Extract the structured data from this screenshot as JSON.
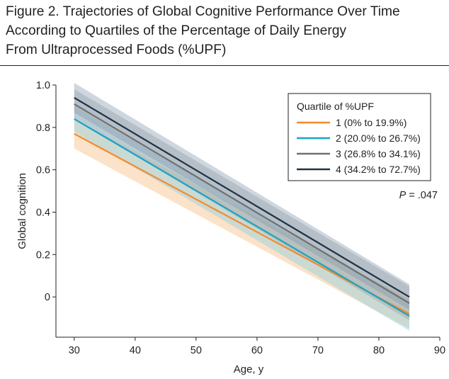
{
  "figure": {
    "title_lines": [
      "Figure 2. Trajectories of Global Cognitive Performance Over Time",
      "According to Quartiles of the Percentage of Daily Energy",
      "From Ultraprocessed Foods (%UPF)"
    ]
  },
  "chart_data": {
    "type": "line",
    "title": "Figure 2. Trajectories of Global Cognitive Performance Over Time According to Quartiles of the Percentage of Daily Energy From Ultraprocessed Foods (%UPF)",
    "xlabel": "Age, y",
    "ylabel": "Global cognition",
    "xlim": [
      27,
      90
    ],
    "ylim": [
      -0.19,
      1.0
    ],
    "xticks": [
      30,
      40,
      50,
      60,
      70,
      80,
      90
    ],
    "yticks": [
      0,
      0.2,
      0.4,
      0.6,
      0.8,
      1.0
    ],
    "ytick_labels": [
      "0",
      "0.2",
      "0.4",
      "0.6",
      "0.8",
      "1.0"
    ],
    "grid": false,
    "legend_title": "Quartile of %UPF",
    "legend_position": "top-right",
    "annotation": "P = .047",
    "series": [
      {
        "name": "1 (0% to 19.9%)",
        "color": "#f08c2d",
        "band_color": "#f5b36e",
        "x": [
          30,
          85
        ],
        "values": [
          0.77,
          -0.08
        ],
        "ci_lower": [
          0.7,
          -0.15
        ],
        "ci_upper": [
          0.84,
          -0.01
        ]
      },
      {
        "name": "2 (20.0% to 26.7%)",
        "color": "#1aa3c5",
        "band_color": "#7fcbe6",
        "x": [
          30,
          85
        ],
        "values": [
          0.84,
          -0.09
        ],
        "ci_lower": [
          0.78,
          -0.16
        ],
        "ci_upper": [
          0.9,
          -0.02
        ]
      },
      {
        "name": "3 (26.8% to 34.1%)",
        "color": "#707070",
        "band_color": "#9a9a9a",
        "x": [
          30,
          85
        ],
        "values": [
          0.91,
          -0.03
        ],
        "ci_lower": [
          0.84,
          -0.11
        ],
        "ci_upper": [
          0.98,
          0.05
        ]
      },
      {
        "name": "4 (34.2% to 72.7%)",
        "color": "#1d3447",
        "band_color": "#7f95ab",
        "x": [
          30,
          85
        ],
        "values": [
          0.94,
          0.0
        ],
        "ci_lower": [
          0.87,
          -0.06
        ],
        "ci_upper": [
          1.01,
          0.06
        ]
      }
    ]
  }
}
